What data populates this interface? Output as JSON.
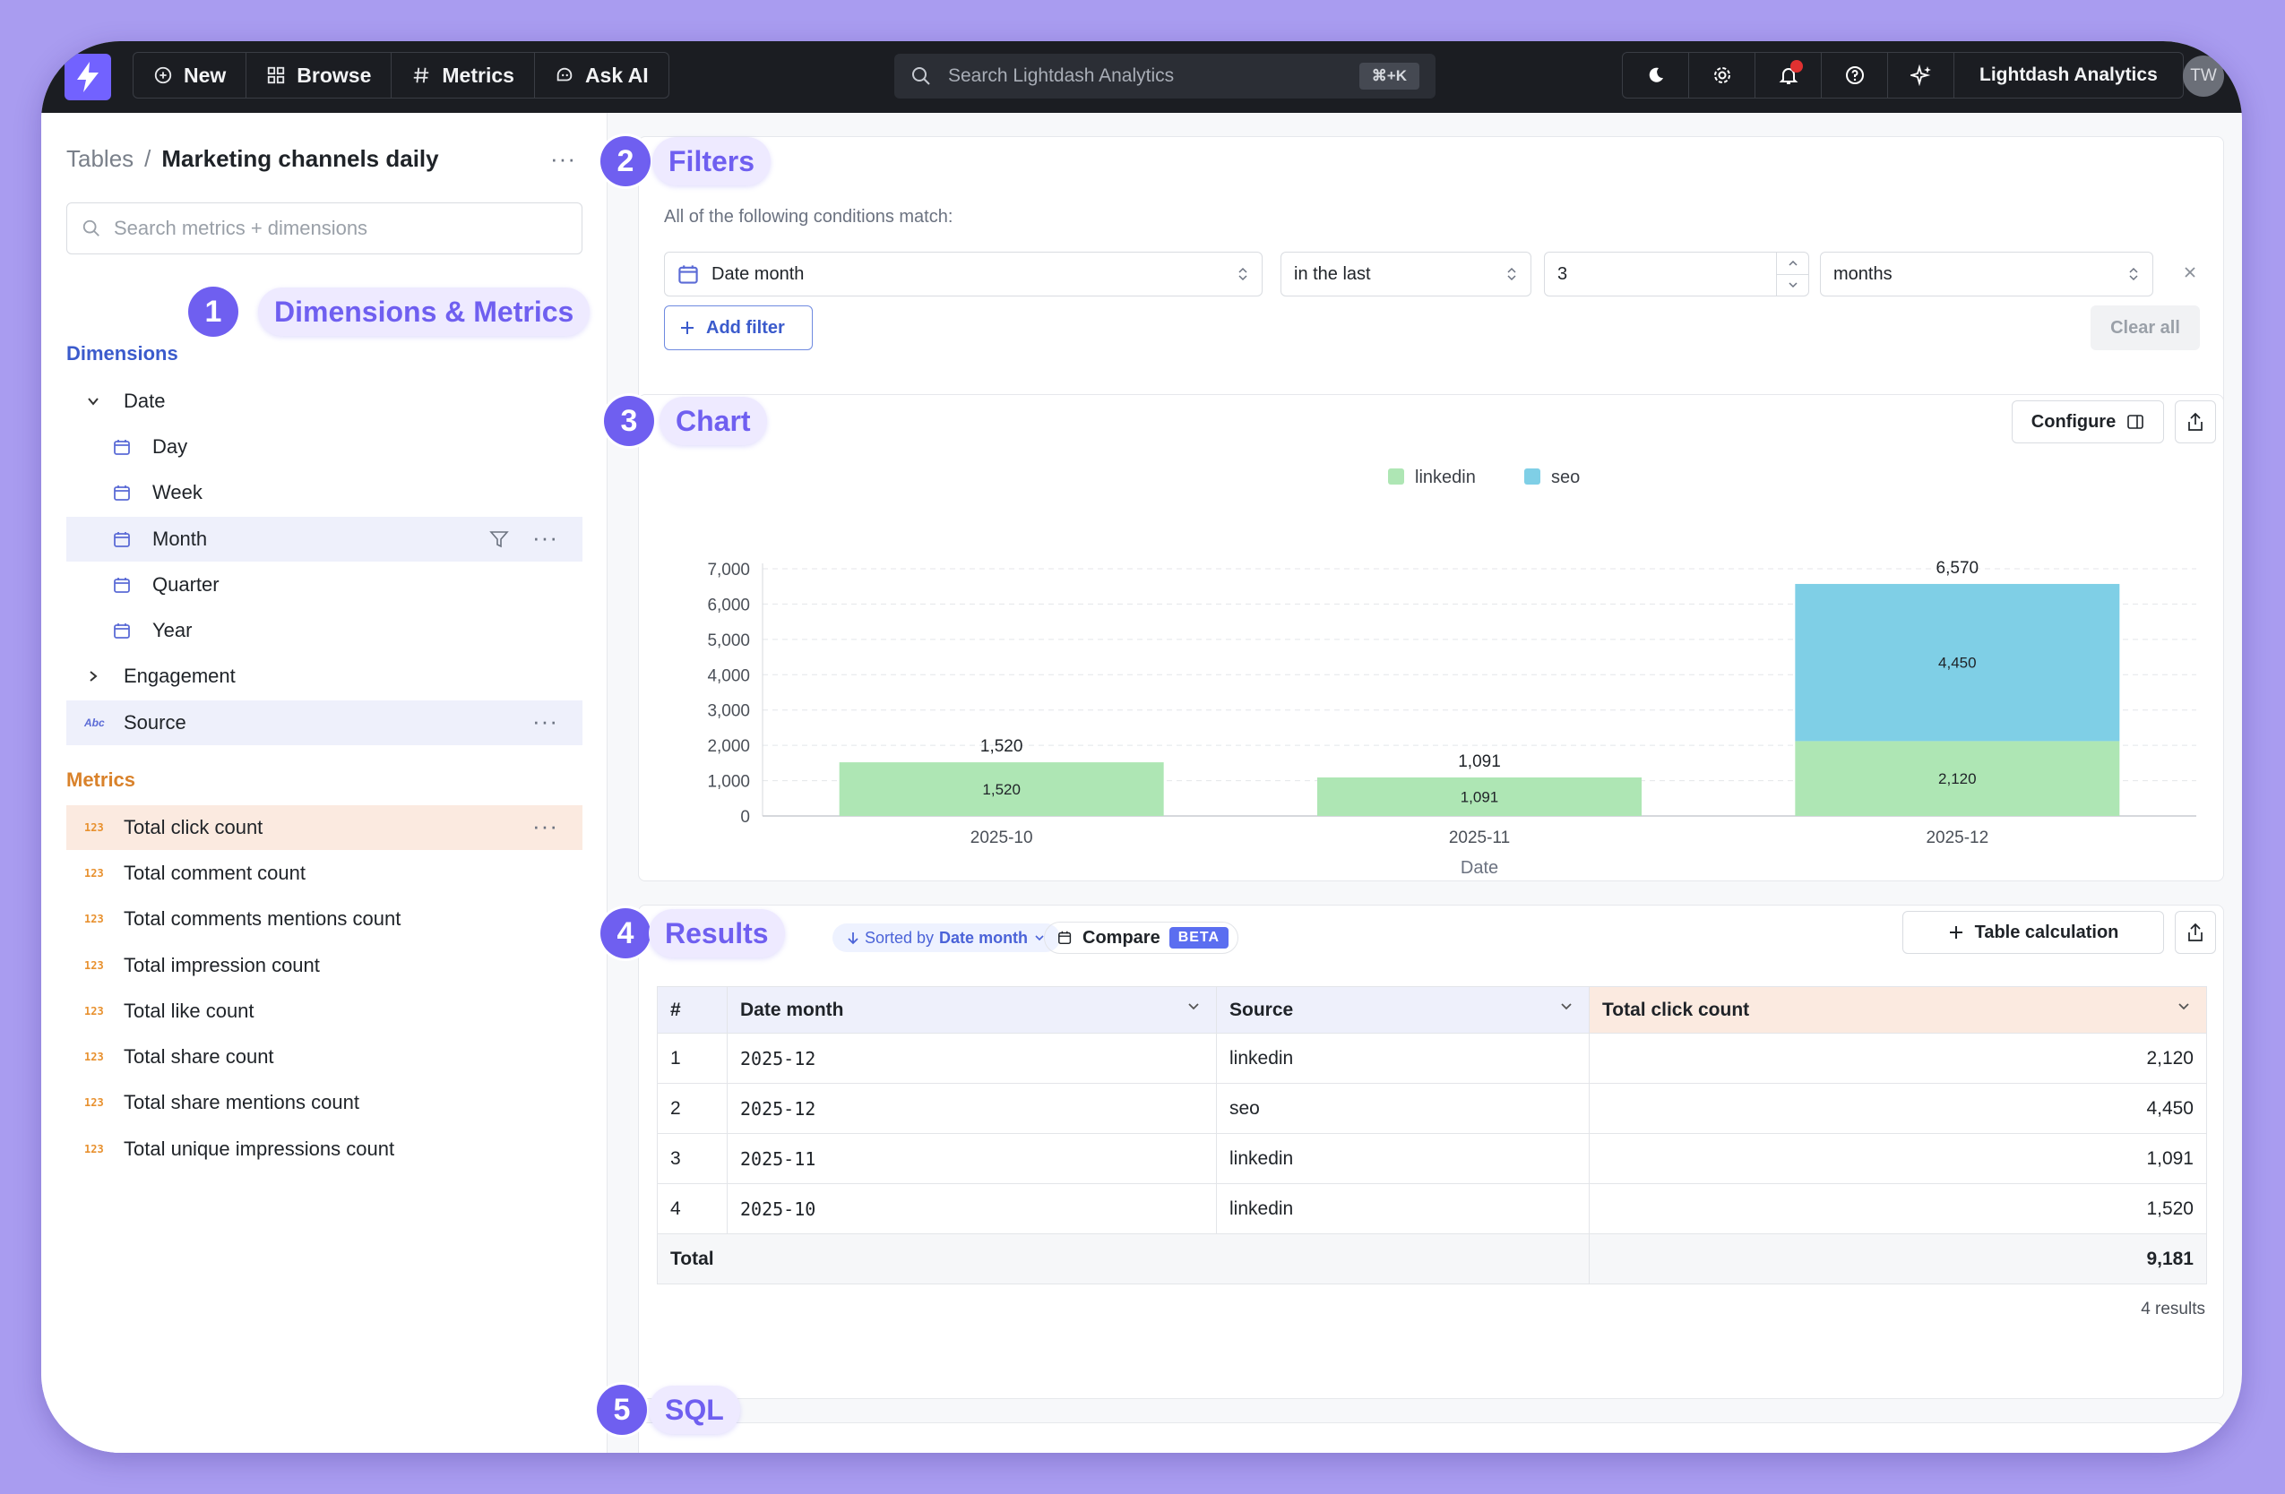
{
  "nav": {
    "new": "New",
    "browse": "Browse",
    "metrics": "Metrics",
    "ask_ai": "Ask AI",
    "search_placeholder": "Search Lightdash Analytics",
    "search_shortcut": "⌘+K",
    "org_name": "Lightdash Analytics",
    "avatar_initials": "TW"
  },
  "sidebar": {
    "breadcrumb_root": "Tables",
    "breadcrumb_sep": "/",
    "table_name": "Marketing channels daily",
    "more": "···",
    "search_placeholder": "Search metrics + dimensions",
    "dimensions_title": "Dimensions",
    "metrics_title": "Metrics",
    "date_group": "Date",
    "date_items": [
      "Day",
      "Week",
      "Month",
      "Quarter",
      "Year"
    ],
    "engagement_group": "Engagement",
    "source": "Source",
    "source_type_icon": "Abc",
    "metric_type_icon": "123",
    "metrics": [
      "Total click count",
      "Total comment count",
      "Total comments mentions count",
      "Total impression count",
      "Total like count",
      "Total share count",
      "Total share mentions count",
      "Total unique impressions count"
    ]
  },
  "callouts": {
    "c1": {
      "num": "1",
      "label": "Dimensions & Metrics"
    },
    "c2": {
      "num": "2",
      "label": "Filters"
    },
    "c3": {
      "num": "3",
      "label": "Chart"
    },
    "c4": {
      "num": "4",
      "label": "Results"
    },
    "c5": {
      "num": "5",
      "label": "SQL"
    }
  },
  "filters": {
    "subtitle": "All of the following conditions match:",
    "field": "Date month",
    "operator": "in the last",
    "value": "3",
    "unit": "months",
    "add_filter": "Add filter",
    "clear_all": "Clear all"
  },
  "chart_panel": {
    "configure": "Configure"
  },
  "chart_data": {
    "type": "bar",
    "stacked": true,
    "categories": [
      "2025-10",
      "2025-11",
      "2025-12"
    ],
    "series": [
      {
        "name": "linkedin",
        "values": [
          1520,
          1091,
          2120
        ],
        "color": "#aee6b4"
      },
      {
        "name": "seo",
        "values": [
          0,
          0,
          4450
        ],
        "color": "#7fcfe6"
      }
    ],
    "totals": [
      1520,
      1091,
      6570
    ],
    "xlabel": "Date",
    "ylabel": "",
    "ylim": [
      0,
      7000
    ],
    "yticks": [
      0,
      1000,
      2000,
      3000,
      4000,
      5000,
      6000,
      7000
    ],
    "legend_position": "top-center",
    "grid": true
  },
  "results": {
    "sorted_prefix": "Sorted by",
    "sorted_field": "Date month",
    "compare": "Compare",
    "beta": "BETA",
    "table_calc": "Table calculation",
    "headers": [
      "#",
      "Date month",
      "Source",
      "Total click count"
    ],
    "rows": [
      {
        "n": "1",
        "date": "2025-12",
        "source": "linkedin",
        "clicks": "2,120"
      },
      {
        "n": "2",
        "date": "2025-12",
        "source": "seo",
        "clicks": "4,450"
      },
      {
        "n": "3",
        "date": "2025-11",
        "source": "linkedin",
        "clicks": "1,091"
      },
      {
        "n": "4",
        "date": "2025-10",
        "source": "linkedin",
        "clicks": "1,520"
      }
    ],
    "total_label": "Total",
    "total_value": "9,181",
    "count": "4 results"
  }
}
